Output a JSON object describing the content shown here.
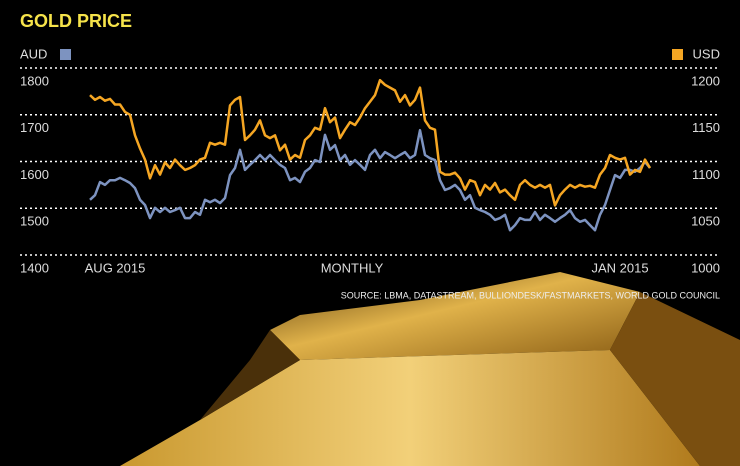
{
  "chart_data": {
    "type": "line",
    "title": "GOLD PRICE",
    "x_labels": [
      "AUG 2015",
      "MONTHLY",
      "JAN 2015"
    ],
    "source": "SOURCE: LBMA, DATASTREAM, BULLIONDESK/FASTMARKETS, WORLD GOLD COUNCIL",
    "ylim": [
      1400,
      1800
    ],
    "yticks": [
      1400,
      1500,
      1600,
      1700,
      1800
    ],
    "y2lim": [
      1000,
      1200
    ],
    "y2ticks": [
      1000,
      1050,
      1100,
      1150,
      1200
    ],
    "grid": true,
    "series": [
      {
        "name": "AUD",
        "color": "#7d93c0",
        "values": [
          1518,
          1528,
          1556,
          1550,
          1560,
          1560,
          1565,
          1560,
          1554,
          1543,
          1518,
          1507,
          1479,
          1501,
          1492,
          1501,
          1492,
          1496,
          1501,
          1479,
          1479,
          1492,
          1486,
          1518,
          1513,
          1518,
          1511,
          1522,
          1571,
          1586,
          1625,
          1582,
          1593,
          1603,
          1614,
          1603,
          1614,
          1603,
          1593,
          1586,
          1560,
          1565,
          1556,
          1578,
          1586,
          1603,
          1599,
          1657,
          1625,
          1635,
          1603,
          1614,
          1593,
          1603,
          1593,
          1582,
          1614,
          1625,
          1607,
          1620,
          1614,
          1607,
          1614,
          1620,
          1607,
          1614,
          1667,
          1614,
          1607,
          1603,
          1560,
          1539,
          1543,
          1550,
          1539,
          1518,
          1528,
          1501,
          1496,
          1492,
          1486,
          1475,
          1479,
          1486,
          1453,
          1464,
          1479,
          1475,
          1475,
          1492,
          1475,
          1486,
          1479,
          1471,
          1479,
          1486,
          1496,
          1479,
          1471,
          1475,
          1464,
          1453,
          1486,
          1507,
          1539,
          1571,
          1565,
          1582,
          1582,
          1578,
          1586,
          1599,
          1586
        ]
      },
      {
        "name": "USD",
        "color": "#f5a623",
        "axis": "y2",
        "values": [
          1171,
          1166,
          1169,
          1165,
          1167,
          1161,
          1161,
          1153,
          1150,
          1128,
          1114,
          1102,
          1082,
          1096,
          1086,
          1099,
          1093,
          1102,
          1096,
          1091,
          1093,
          1096,
          1102,
          1104,
          1120,
          1118,
          1120,
          1118,
          1160,
          1166,
          1169,
          1123,
          1128,
          1134,
          1144,
          1128,
          1125,
          1128,
          1112,
          1118,
          1102,
          1107,
          1104,
          1123,
          1128,
          1136,
          1134,
          1157,
          1142,
          1147,
          1125,
          1134,
          1142,
          1139,
          1147,
          1157,
          1164,
          1171,
          1187,
          1182,
          1179,
          1176,
          1164,
          1171,
          1160,
          1166,
          1179,
          1144,
          1136,
          1134,
          1089,
          1086,
          1086,
          1088,
          1082,
          1070,
          1080,
          1078,
          1064,
          1075,
          1070,
          1077,
          1067,
          1070,
          1064,
          1059,
          1075,
          1080,
          1075,
          1072,
          1075,
          1072,
          1075,
          1053,
          1064,
          1070,
          1075,
          1072,
          1075,
          1073,
          1074,
          1072,
          1086,
          1093,
          1107,
          1104,
          1102,
          1104,
          1086,
          1091,
          1089,
          1102,
          1093
        ]
      }
    ]
  }
}
